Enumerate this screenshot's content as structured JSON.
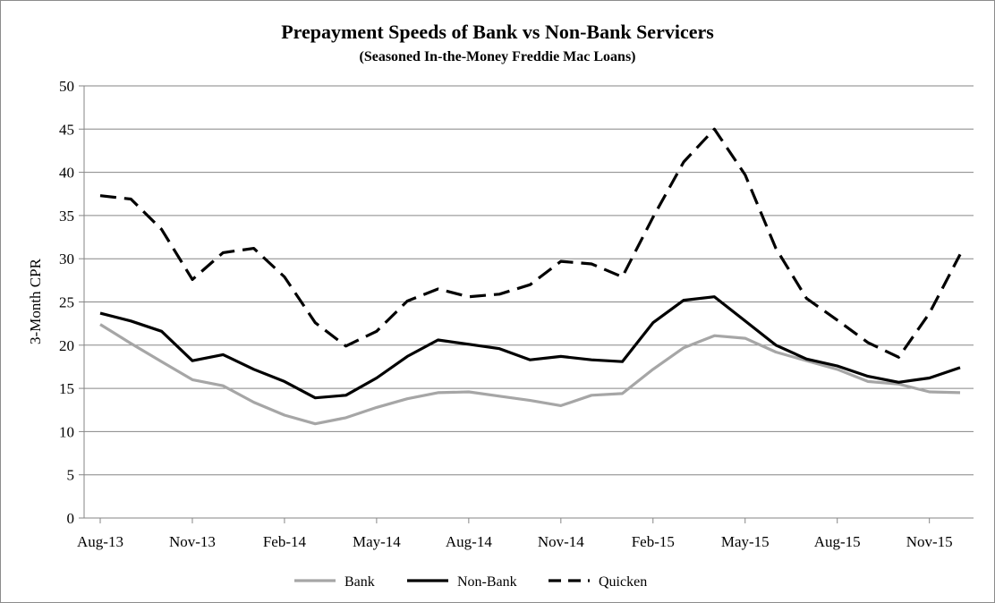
{
  "chart_data": {
    "type": "line",
    "title": "Prepayment Speeds of Bank vs Non-Bank Servicers",
    "subtitle": "(Seasoned In-the-Money  Freddie Mac Loans)",
    "xlabel": "",
    "ylabel": "3-Month CPR",
    "ylim": [
      0,
      50
    ],
    "yticks": [
      0,
      5,
      10,
      15,
      20,
      25,
      30,
      35,
      40,
      45,
      50
    ],
    "grid": true,
    "legend_position": "bottom",
    "x": [
      "Aug-13",
      "Sep-13",
      "Oct-13",
      "Nov-13",
      "Dec-13",
      "Jan-14",
      "Feb-14",
      "Mar-14",
      "Apr-14",
      "May-14",
      "Jun-14",
      "Jul-14",
      "Aug-14",
      "Sep-14",
      "Oct-14",
      "Nov-14",
      "Dec-14",
      "Jan-15",
      "Feb-15",
      "Mar-15",
      "Apr-15",
      "May-15",
      "Jun-15",
      "Jul-15",
      "Aug-15",
      "Sep-15",
      "Oct-15",
      "Nov-15",
      "Dec-15"
    ],
    "xtick_labels": [
      "Aug-13",
      "Nov-13",
      "Feb-14",
      "May-14",
      "Aug-14",
      "Nov-14",
      "Feb-15",
      "May-15",
      "Aug-15",
      "Nov-15"
    ],
    "series": [
      {
        "name": "Bank",
        "color": "#a6a6a6",
        "dash": "solid",
        "values": [
          22.4,
          20.2,
          18.1,
          16.0,
          15.3,
          13.4,
          11.9,
          10.9,
          11.6,
          12.8,
          13.8,
          14.5,
          14.6,
          14.1,
          13.6,
          13.0,
          14.2,
          14.4,
          17.2,
          19.7,
          21.1,
          20.8,
          19.2,
          18.2,
          17.2,
          15.8,
          15.5,
          14.6,
          14.5
        ]
      },
      {
        "name": "Non-Bank",
        "color": "#000000",
        "dash": "solid",
        "values": [
          23.7,
          22.8,
          21.6,
          18.2,
          18.9,
          17.2,
          15.8,
          13.9,
          14.2,
          16.2,
          18.7,
          20.6,
          20.1,
          19.6,
          18.3,
          18.7,
          18.3,
          18.1,
          22.6,
          25.2,
          25.6,
          22.8,
          20.0,
          18.4,
          17.6,
          16.4,
          15.7,
          16.2,
          17.4
        ]
      },
      {
        "name": "Quicken",
        "color": "#000000",
        "dash": "dashed",
        "values": [
          37.3,
          36.9,
          33.4,
          27.6,
          30.7,
          31.2,
          27.9,
          22.6,
          19.9,
          21.6,
          25.1,
          26.5,
          25.6,
          25.9,
          27.0,
          29.7,
          29.4,
          27.9,
          34.8,
          41.2,
          45.0,
          39.7,
          31.2,
          25.4,
          22.9,
          20.3,
          18.6,
          23.7,
          30.5
        ]
      }
    ]
  }
}
